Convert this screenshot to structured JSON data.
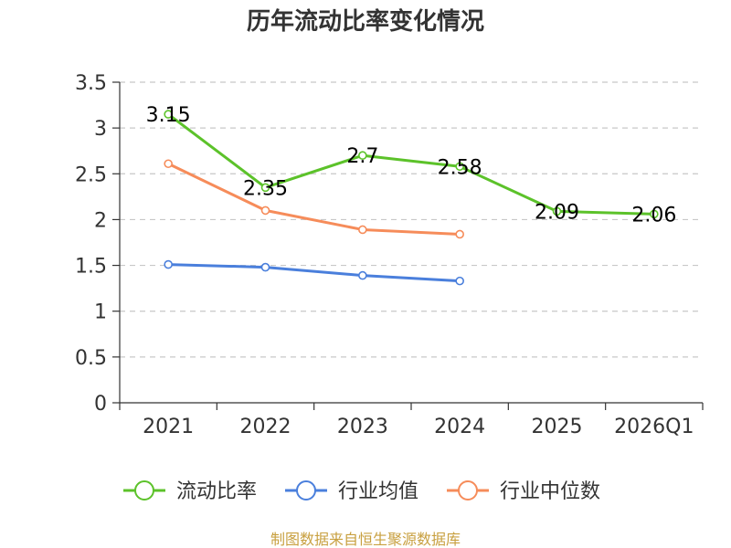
{
  "chart_data": {
    "type": "line",
    "title": "历年流动比率变化情况",
    "categories": [
      "2021",
      "2022",
      "2023",
      "2024",
      "2025",
      "2026Q1"
    ],
    "ylim": [
      0,
      3.5
    ],
    "yticks": [
      "0",
      "0.5",
      "1",
      "1.5",
      "2",
      "2.5",
      "3",
      "3.5"
    ],
    "grid": true,
    "legend_position": "bottom",
    "series": [
      {
        "name": "流动比率",
        "color": "#5cc22a",
        "values": [
          3.15,
          2.35,
          2.7,
          2.58,
          2.09,
          2.06
        ],
        "labels": [
          "3.15",
          "2.35",
          "2.7",
          "2.58",
          "2.09",
          "2.06"
        ],
        "show_labels": true
      },
      {
        "name": "行业均值",
        "color": "#4a7fdc",
        "values": [
          1.51,
          1.48,
          1.39,
          1.33,
          null,
          null
        ],
        "show_labels": false
      },
      {
        "name": "行业中位数",
        "color": "#f68c5a",
        "values": [
          2.61,
          2.1,
          1.89,
          1.84,
          null,
          null
        ],
        "show_labels": false
      }
    ],
    "source": "制图数据来自恒生聚源数据库"
  }
}
